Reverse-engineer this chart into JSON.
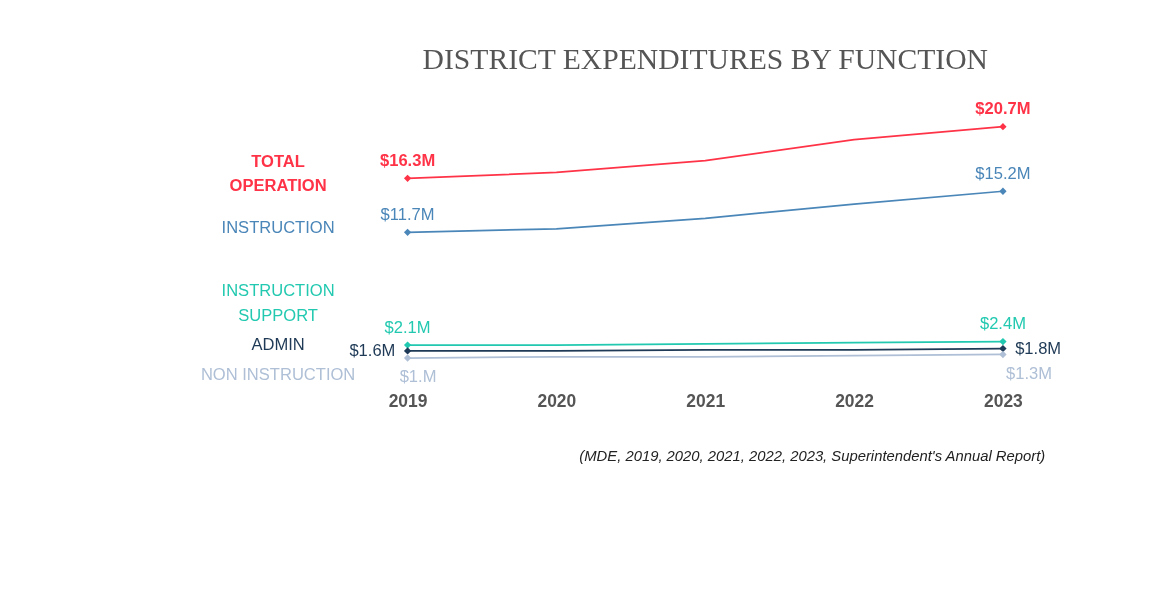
{
  "chart_data": {
    "type": "line",
    "title": "DISTRICT EXPENDITURES BY FUNCTION",
    "categories": [
      "2019",
      "2020",
      "2021",
      "2022",
      "2023"
    ],
    "series": [
      {
        "name": "TOTAL\nOPERATION",
        "color": "#ff3347",
        "values": [
          16.3,
          16.8,
          17.8,
          19.6,
          20.7
        ],
        "value_labels": [
          "$16.3M",
          null,
          null,
          null,
          "$20.7M"
        ]
      },
      {
        "name": "INSTRUCTION",
        "color": "#4a86b8",
        "values": [
          11.7,
          12.0,
          12.9,
          14.1,
          15.2
        ],
        "value_labels": [
          "$11.7M",
          null,
          null,
          null,
          "$15.2M"
        ]
      },
      {
        "name": "INSTRUCTION\nSUPPORT",
        "color": "#22c9b0",
        "values": [
          2.1,
          2.1,
          2.2,
          2.3,
          2.4
        ],
        "value_labels": [
          "$2.1M",
          null,
          null,
          null,
          "$2.4M"
        ]
      },
      {
        "name": "ADMIN",
        "color": "#1f3a56",
        "values": [
          1.6,
          1.6,
          1.7,
          1.7,
          1.8
        ],
        "value_labels": [
          "$1.6M",
          null,
          null,
          null,
          "$1.8M"
        ]
      },
      {
        "name": "NON INSTRUCTION",
        "color": "#aebfd6",
        "values": [
          1.0,
          1.1,
          1.1,
          1.2,
          1.3
        ],
        "value_labels": [
          "$1.M",
          null,
          null,
          null,
          "$1.3M"
        ]
      }
    ],
    "grid": false,
    "annotations": [
      "(MDE,  2019, 2020, 2021, 2022, 2023, Superintendent's Annual Report)"
    ]
  }
}
